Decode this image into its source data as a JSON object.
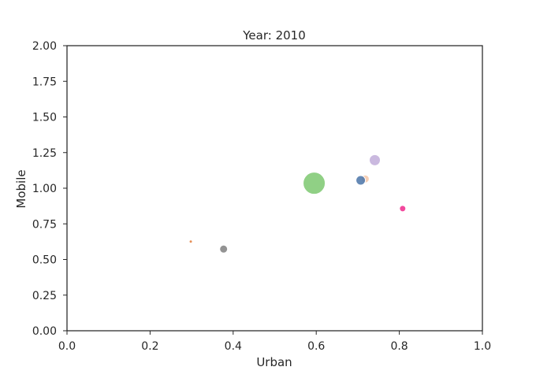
{
  "chart_data": {
    "type": "scatter",
    "title": "Year: 2010",
    "xlabel": "Urban",
    "ylabel": "Mobile",
    "xlim": [
      0,
      1
    ],
    "ylim": [
      0,
      2
    ],
    "xticks": [
      "0.0",
      "0.2",
      "0.4",
      "0.6",
      "0.8",
      "1.0"
    ],
    "yticks": [
      "0.00",
      "0.25",
      "0.50",
      "0.75",
      "1.00",
      "1.25",
      "1.50",
      "1.75",
      "2.00"
    ],
    "grid": false,
    "points": [
      {
        "x": 0.298,
        "y": 0.626,
        "size": 2,
        "color": "#e07b39"
      },
      {
        "x": 0.377,
        "y": 0.573,
        "size": 5,
        "color": "#808080"
      },
      {
        "x": 0.595,
        "y": 1.035,
        "size": 14,
        "color": "#7cc870"
      },
      {
        "x": 0.718,
        "y": 1.065,
        "size": 5,
        "color": "#f4c7a8"
      },
      {
        "x": 0.707,
        "y": 1.055,
        "size": 6,
        "color": "#4a74a8"
      },
      {
        "x": 0.741,
        "y": 1.197,
        "size": 7,
        "color": "#c1add9"
      },
      {
        "x": 0.808,
        "y": 0.857,
        "size": 4,
        "color": "#f0288c"
      }
    ]
  }
}
